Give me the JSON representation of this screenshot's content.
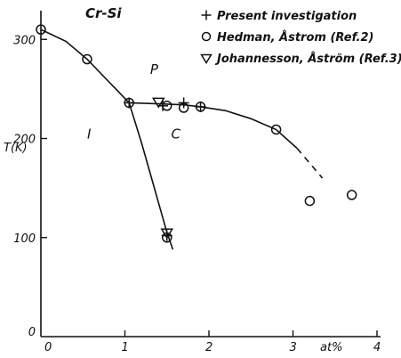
{
  "chart_data": {
    "type": "scatter",
    "title": "Cr-Si",
    "ylabel": "T(K)",
    "xlabel": "at%",
    "xlim": [
      0,
      4
    ],
    "ylim": [
      0,
      320
    ],
    "x_ticks": [
      "0",
      "1",
      "2",
      "3",
      "4"
    ],
    "y_ticks": [
      "0",
      "100",
      "200",
      "300"
    ],
    "grid": false,
    "legend_position": "top-right",
    "regions": [
      "P",
      "I",
      "C"
    ],
    "series": [
      {
        "name": "Present investigation",
        "marker": "plus",
        "x": [
          1.05,
          1.45,
          1.7,
          1.9,
          1.5
        ],
        "y": [
          236,
          233,
          236,
          232,
          102
        ]
      },
      {
        "name": "Hedman, Åstrom (Ref.2)",
        "marker": "circle",
        "x": [
          0.0,
          0.55,
          1.05,
          1.5,
          1.7,
          1.9,
          2.8,
          3.2,
          3.7,
          1.5
        ],
        "y": [
          310,
          280,
          236,
          233,
          231,
          232,
          209,
          137,
          143,
          100
        ]
      },
      {
        "name": "Johannesson, Åström (Ref.3)",
        "marker": "triangle-down",
        "x": [
          1.4,
          1.5
        ],
        "y": [
          237,
          105
        ]
      }
    ],
    "curves": [
      {
        "style": "solid",
        "x": [
          0.0,
          0.3,
          0.55,
          0.8,
          1.05
        ],
        "y": [
          310,
          298,
          280,
          258,
          236
        ]
      },
      {
        "style": "solid",
        "x": [
          1.05,
          1.4,
          1.7,
          1.9,
          2.2,
          2.5,
          2.8,
          3.05
        ],
        "y": [
          236,
          235,
          234,
          232,
          228,
          220,
          209,
          190
        ]
      },
      {
        "style": "dashed",
        "x": [
          3.05,
          3.2,
          3.35
        ],
        "y": [
          190,
          175,
          160
        ]
      },
      {
        "style": "solid",
        "x": [
          1.05,
          1.2,
          1.35,
          1.5,
          1.57
        ],
        "y": [
          236,
          195,
          150,
          105,
          88
        ]
      }
    ]
  }
}
